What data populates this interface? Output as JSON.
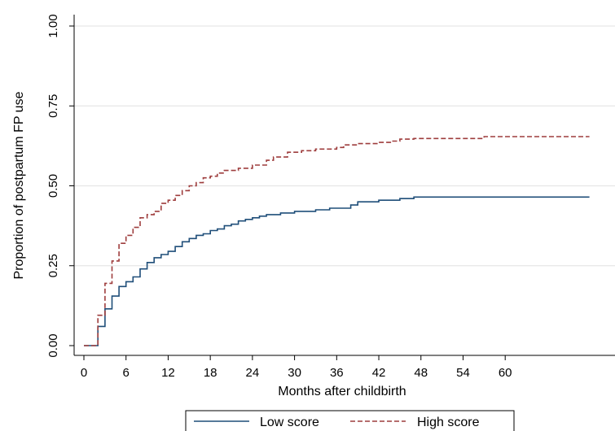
{
  "chart_data": {
    "type": "line",
    "title": "",
    "xlabel": "Months after childbirth",
    "ylabel": "Proportion of postpartum FP use",
    "xlim": [
      0,
      70
    ],
    "ylim": [
      0,
      1
    ],
    "x_ticks": [
      0,
      6,
      12,
      18,
      24,
      30,
      36,
      42,
      48,
      54,
      60
    ],
    "y_ticks": [
      0,
      0.25,
      0.5,
      0.75,
      1
    ],
    "y_tick_labels": [
      "0.00",
      "0.25",
      "0.50",
      "0.75",
      "1.00"
    ],
    "grid": "horizontal",
    "legend_position": "bottom",
    "step": true,
    "series": [
      {
        "name": "Low score",
        "color": "#1f4e79",
        "dash": "solid",
        "points": [
          [
            0,
            0
          ],
          [
            2,
            0
          ],
          [
            2,
            0.06
          ],
          [
            3,
            0.06
          ],
          [
            3,
            0.115
          ],
          [
            4,
            0.115
          ],
          [
            4,
            0.155
          ],
          [
            5,
            0.155
          ],
          [
            5,
            0.185
          ],
          [
            6,
            0.185
          ],
          [
            6,
            0.2
          ],
          [
            7,
            0.2
          ],
          [
            7,
            0.215
          ],
          [
            8,
            0.215
          ],
          [
            8,
            0.24
          ],
          [
            9,
            0.24
          ],
          [
            9,
            0.26
          ],
          [
            10,
            0.26
          ],
          [
            10,
            0.275
          ],
          [
            11,
            0.275
          ],
          [
            11,
            0.285
          ],
          [
            12,
            0.285
          ],
          [
            12,
            0.295
          ],
          [
            13,
            0.295
          ],
          [
            13,
            0.31
          ],
          [
            14,
            0.31
          ],
          [
            14,
            0.325
          ],
          [
            15,
            0.325
          ],
          [
            15,
            0.335
          ],
          [
            16,
            0.335
          ],
          [
            16,
            0.345
          ],
          [
            17,
            0.345
          ],
          [
            17,
            0.35
          ],
          [
            18,
            0.35
          ],
          [
            18,
            0.36
          ],
          [
            19,
            0.36
          ],
          [
            19,
            0.365
          ],
          [
            20,
            0.365
          ],
          [
            20,
            0.375
          ],
          [
            21,
            0.375
          ],
          [
            21,
            0.38
          ],
          [
            22,
            0.38
          ],
          [
            22,
            0.39
          ],
          [
            23,
            0.39
          ],
          [
            23,
            0.395
          ],
          [
            24,
            0.395
          ],
          [
            24,
            0.4
          ],
          [
            25,
            0.4
          ],
          [
            25,
            0.405
          ],
          [
            26,
            0.405
          ],
          [
            26,
            0.41
          ],
          [
            28,
            0.41
          ],
          [
            28,
            0.415
          ],
          [
            30,
            0.415
          ],
          [
            30,
            0.42
          ],
          [
            33,
            0.42
          ],
          [
            33,
            0.425
          ],
          [
            35,
            0.425
          ],
          [
            35,
            0.43
          ],
          [
            38,
            0.43
          ],
          [
            38,
            0.44
          ],
          [
            39,
            0.44
          ],
          [
            39,
            0.45
          ],
          [
            42,
            0.45
          ],
          [
            42,
            0.455
          ],
          [
            45,
            0.455
          ],
          [
            45,
            0.46
          ],
          [
            47,
            0.46
          ],
          [
            47,
            0.465
          ],
          [
            72,
            0.465
          ]
        ]
      },
      {
        "name": "High score",
        "color": "#9e3d3d",
        "dash": "dashed",
        "points": [
          [
            0,
            0
          ],
          [
            2,
            0
          ],
          [
            2,
            0.095
          ],
          [
            3,
            0.095
          ],
          [
            3,
            0.195
          ],
          [
            4,
            0.195
          ],
          [
            4,
            0.265
          ],
          [
            5,
            0.265
          ],
          [
            5,
            0.32
          ],
          [
            6,
            0.32
          ],
          [
            6,
            0.345
          ],
          [
            7,
            0.345
          ],
          [
            7,
            0.37
          ],
          [
            8,
            0.37
          ],
          [
            8,
            0.4
          ],
          [
            9,
            0.4
          ],
          [
            9,
            0.41
          ],
          [
            10,
            0.41
          ],
          [
            10,
            0.42
          ],
          [
            11,
            0.42
          ],
          [
            11,
            0.445
          ],
          [
            12,
            0.445
          ],
          [
            12,
            0.455
          ],
          [
            13,
            0.455
          ],
          [
            13,
            0.47
          ],
          [
            14,
            0.47
          ],
          [
            14,
            0.485
          ],
          [
            15,
            0.485
          ],
          [
            15,
            0.5
          ],
          [
            16,
            0.5
          ],
          [
            16,
            0.51
          ],
          [
            17,
            0.51
          ],
          [
            17,
            0.525
          ],
          [
            18,
            0.525
          ],
          [
            18,
            0.53
          ],
          [
            19,
            0.53
          ],
          [
            19,
            0.54
          ],
          [
            20,
            0.54
          ],
          [
            20,
            0.548
          ],
          [
            22,
            0.548
          ],
          [
            22,
            0.555
          ],
          [
            24,
            0.555
          ],
          [
            24,
            0.565
          ],
          [
            26,
            0.565
          ],
          [
            26,
            0.58
          ],
          [
            27,
            0.58
          ],
          [
            27,
            0.59
          ],
          [
            29,
            0.59
          ],
          [
            29,
            0.605
          ],
          [
            31,
            0.605
          ],
          [
            31,
            0.61
          ],
          [
            33,
            0.61
          ],
          [
            33,
            0.615
          ],
          [
            36,
            0.615
          ],
          [
            36,
            0.62
          ],
          [
            37,
            0.62
          ],
          [
            37,
            0.628
          ],
          [
            39,
            0.628
          ],
          [
            39,
            0.632
          ],
          [
            42,
            0.632
          ],
          [
            42,
            0.636
          ],
          [
            44,
            0.636
          ],
          [
            44,
            0.64
          ],
          [
            45,
            0.64
          ],
          [
            45,
            0.646
          ],
          [
            47,
            0.646
          ],
          [
            47,
            0.648
          ],
          [
            57,
            0.648
          ],
          [
            57,
            0.654
          ],
          [
            72,
            0.654
          ]
        ]
      }
    ]
  }
}
